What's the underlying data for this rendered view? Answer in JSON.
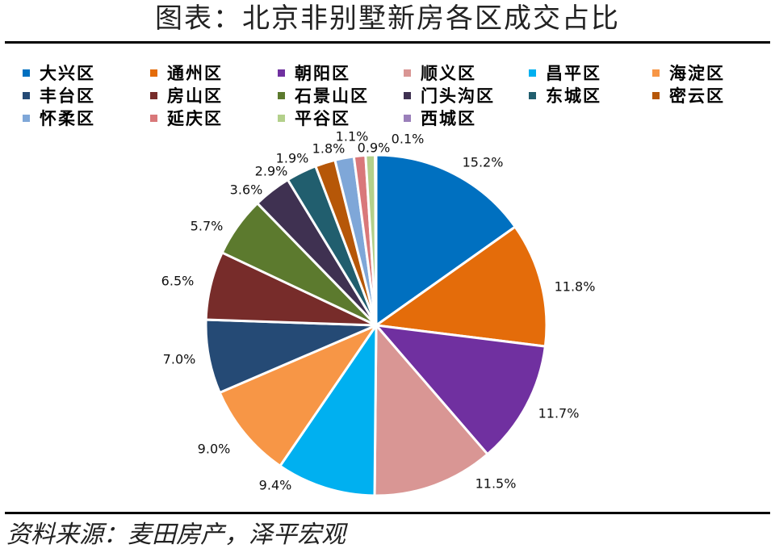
{
  "title": "图表：北京非别墅新房各区成交占比",
  "source": "资料来源：麦田房产，泽平宏观",
  "chart_data": {
    "type": "pie",
    "title": "图表：北京非别墅新房各区成交占比",
    "legend_position": "top",
    "categories": [
      "大兴区",
      "通州区",
      "朝阳区",
      "顺义区",
      "昌平区",
      "海淀区",
      "丰台区",
      "房山区",
      "石景山区",
      "门头沟区",
      "东城区",
      "密云区",
      "怀柔区",
      "延庆区",
      "平谷区",
      "西城区"
    ],
    "values": [
      15.2,
      11.8,
      11.7,
      11.5,
      9.4,
      9.0,
      7.0,
      6.5,
      5.7,
      3.6,
      2.9,
      1.9,
      1.8,
      1.1,
      0.9,
      0.1
    ],
    "labels": [
      "15.2%",
      "11.8%",
      "11.7%",
      "11.5%",
      "9.4%",
      "9.0%",
      "7.0%",
      "6.5%",
      "5.7%",
      "3.6%",
      "2.9%",
      "1.9%",
      "1.8%",
      "1.1%",
      "0.9%",
      "0.1%"
    ],
    "colors": [
      "#0070C0",
      "#E46C0A",
      "#7030A0",
      "#D99694",
      "#00B0F0",
      "#F79646",
      "#254A75",
      "#772C2A",
      "#5C7A2E",
      "#3F3151",
      "#215E6E",
      "#B65708",
      "#7FA7D8",
      "#D9787A",
      "#B3D08B",
      "#9A7FBA"
    ]
  }
}
